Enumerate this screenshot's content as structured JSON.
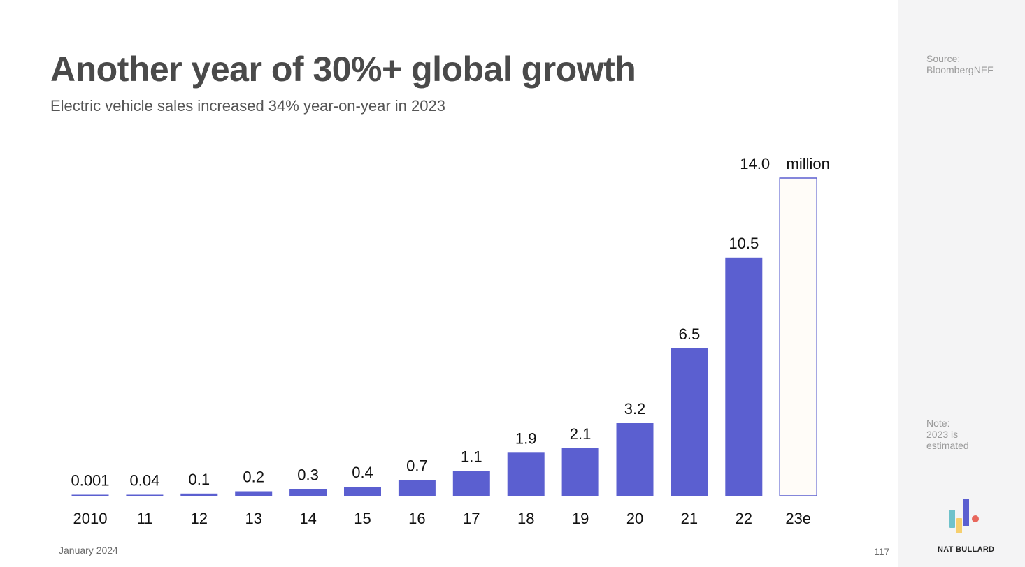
{
  "slide": {
    "title": "Another year of 30%+ global growth",
    "subtitle": "Electric vehicle sales increased 34% year-on-year in 2023",
    "date": "January 2024",
    "page_number": "117"
  },
  "sidebar": {
    "source_lines": [
      "Source:",
      "BloombergNEF"
    ],
    "note_lines": [
      "Note:",
      "2023 is",
      "estimated"
    ],
    "brand": "NAT BULLARD",
    "logo_colors": {
      "teal": "#6fc2cb",
      "yellow": "#f6cf6e",
      "blue": "#5b5fd0",
      "red": "#e8675c"
    }
  },
  "chart_data": {
    "type": "bar",
    "title": "",
    "xlabel": "",
    "ylabel": "",
    "unit_label": "million",
    "categories": [
      "2010",
      "11",
      "12",
      "13",
      "14",
      "15",
      "16",
      "17",
      "18",
      "19",
      "20",
      "21",
      "22",
      "23e"
    ],
    "values": [
      0.001,
      0.04,
      0.1,
      0.2,
      0.3,
      0.4,
      0.7,
      1.1,
      1.9,
      2.1,
      3.2,
      6.5,
      10.5,
      14.0
    ],
    "value_labels": [
      "0.001",
      "0.04",
      "0.1",
      "0.2",
      "0.3",
      "0.4",
      "0.7",
      "1.1",
      "1.9",
      "2.1",
      "3.2",
      "6.5",
      "10.5",
      "14.0"
    ],
    "estimated": [
      false,
      false,
      false,
      false,
      false,
      false,
      false,
      false,
      false,
      false,
      false,
      false,
      false,
      true
    ],
    "ylim": [
      0,
      14.0
    ],
    "grid": false,
    "legend": "none",
    "colors": {
      "bar": "#5b5fd0",
      "estimate_fill": "#fffcf8",
      "estimate_stroke": "#5b5fd0",
      "baseline": "#bdbdbd",
      "label": "#111111"
    }
  }
}
